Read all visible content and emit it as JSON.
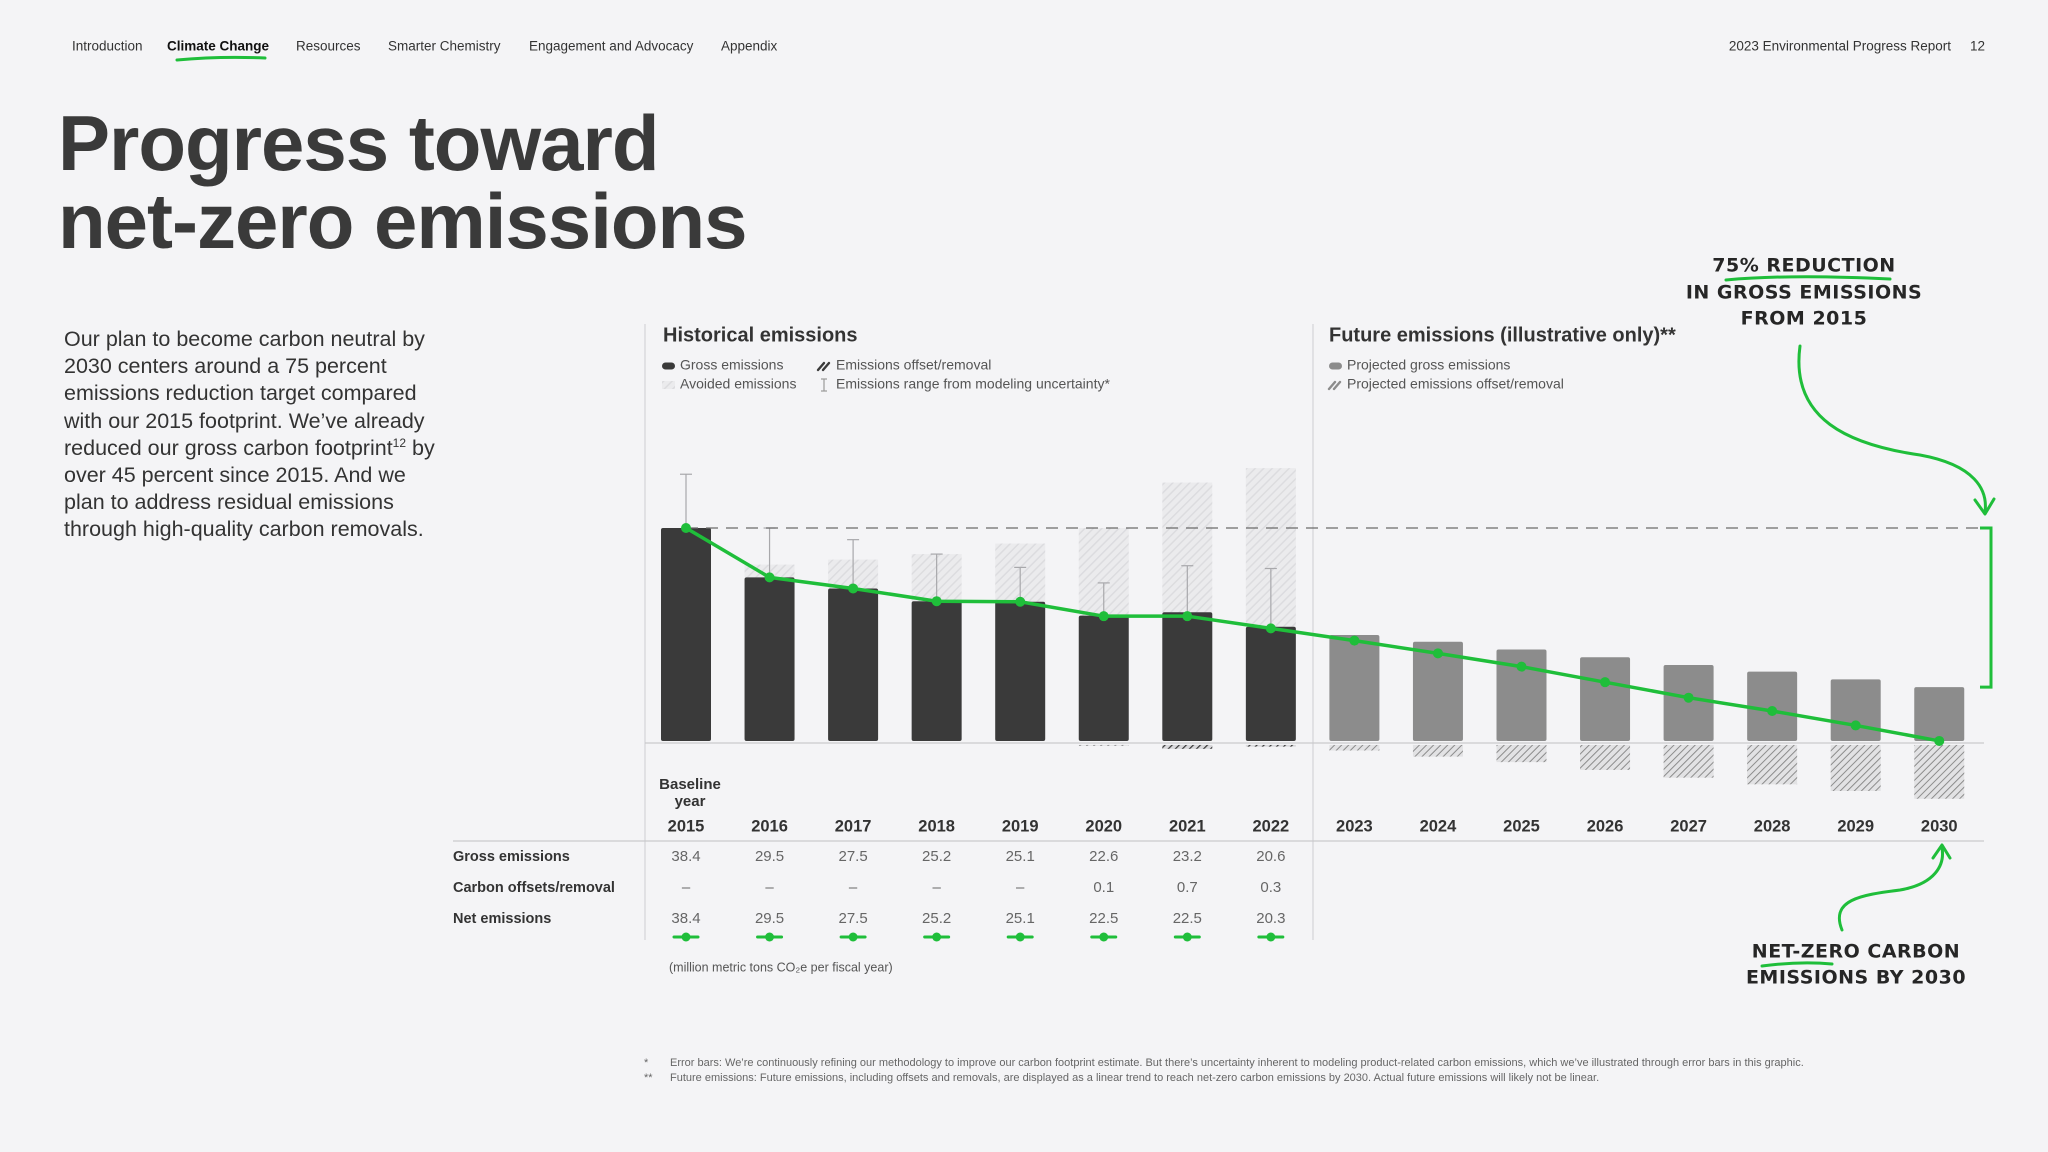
{
  "nav": {
    "items": [
      "Introduction",
      "Climate Change",
      "Resources",
      "Smarter Chemistry",
      "Engagement and Advocacy",
      "Appendix"
    ],
    "report": "2023 Environmental Progress Report",
    "page": 12
  },
  "title": [
    "Progress toward",
    "net-zero emissions"
  ],
  "intro": {
    "before": "Our plan to become carbon neutral by 2030 centers around a 75 percent emissions reduction target compared with our 2015 footprint. We’ve already reduced our gross carbon footprint",
    "superscript": "12",
    "after": " by over 45 percent since 2015. And we plan to address residual emissions through high-quality carbon removals."
  },
  "chart_data": {
    "type": "bar",
    "panel_titles": [
      "Historical emissions",
      "Future emissions (illustrative only)**"
    ],
    "baseline_label": [
      "Baseline",
      "year"
    ],
    "categories": [
      "2015",
      "2016",
      "2017",
      "2018",
      "2019",
      "2020",
      "2021",
      "2022",
      "2023",
      "2024",
      "2025",
      "2026",
      "2027",
      "2028",
      "2029",
      "2030"
    ],
    "series": [
      {
        "name": "Gross emissions",
        "color": "#3a3a3a",
        "values": [
          38.4,
          29.5,
          27.5,
          25.2,
          25.1,
          22.6,
          23.2,
          20.6,
          null,
          null,
          null,
          null,
          null,
          null,
          null,
          null
        ]
      },
      {
        "name": "Emissions offset/removal",
        "color": "#3a3a3a",
        "values": [
          null,
          null,
          null,
          null,
          null,
          0.1,
          0.7,
          0.3,
          null,
          null,
          null,
          null,
          null,
          null,
          null,
          null
        ]
      },
      {
        "name": "Avoided emissions",
        "color": "#d2d2d6",
        "values": [
          null,
          2.3,
          5.2,
          8.5,
          10.5,
          15.8,
          23.4,
          28.6,
          null,
          null,
          null,
          null,
          null,
          null,
          null,
          null
        ]
      },
      {
        "name": "Projected gross emissions",
        "color": "#8c8c8c",
        "values": [
          null,
          null,
          null,
          null,
          null,
          null,
          null,
          null,
          19.1,
          17.9,
          16.5,
          15.1,
          13.7,
          12.5,
          11.1,
          9.7
        ]
      },
      {
        "name": "Projected emissions offset/removal",
        "color": "#8c8c8c",
        "values": [
          null,
          null,
          null,
          null,
          null,
          null,
          null,
          null,
          1.0,
          2.1,
          3.1,
          4.5,
          5.9,
          7.1,
          8.3,
          9.7
        ]
      },
      {
        "color": "#1fbe3a",
        "values": [
          38.4,
          29.5,
          27.5,
          25.2,
          25.1,
          22.5,
          22.5,
          20.3,
          18.1,
          15.8,
          13.4,
          10.6,
          7.8,
          5.4,
          2.8,
          0
        ]
      }
    ],
    "error_range": {
      "name": "Emissions range from modeling uncertainty*",
      "low": [
        30.4,
        27.1,
        25.4,
        23.6,
        24.0,
        19.8,
        13.4,
        13.4,
        null,
        null,
        null,
        null,
        null,
        null,
        null,
        null
      ],
      "high": [
        48.1,
        38.4,
        36.3,
        33.7,
        31.3,
        28.5,
        31.6,
        31.1,
        null,
        null,
        null,
        null,
        null,
        null,
        null,
        null
      ]
    },
    "ylim": [
      -12,
      52
    ]
  },
  "table": {
    "rows": [
      {
        "label": "Gross emissions",
        "values": [
          38.4,
          29.5,
          27.5,
          25.2,
          25.1,
          22.6,
          23.2,
          20.6
        ]
      },
      {
        "label": "Carbon offsets/removal",
        "values": [
          "–",
          "–",
          "–",
          "–",
          "–",
          0.1,
          0.7,
          0.3
        ]
      },
      {
        "label": "Net emissions",
        "values": [
          38.4,
          29.5,
          27.5,
          25.2,
          25.1,
          22.5,
          22.5,
          20.3
        ]
      }
    ],
    "unit_note": "(million metric tons CO₂e per fiscal year)"
  },
  "annotations": [
    [
      "75% REDUCTION",
      "IN GROSS EMISSIONS",
      "FROM 2015"
    ],
    [
      "NET-ZERO CARBON",
      "EMISSIONS BY 2030"
    ]
  ],
  "footnotes": [
    {
      "mark": "*",
      "text": "Error bars: We’re continuously refining our methodology to improve our carbon footprint estimate. But there’s uncertainty inherent to modeling product-related carbon emissions, which we’ve illustrated through error bars in this graphic."
    },
    {
      "mark": "**",
      "text": "Future emissions: Future emissions, including offsets and removals, are displayed as a linear trend to reach net-zero carbon emissions by 2030. Actual future emissions will likely not be linear."
    }
  ]
}
